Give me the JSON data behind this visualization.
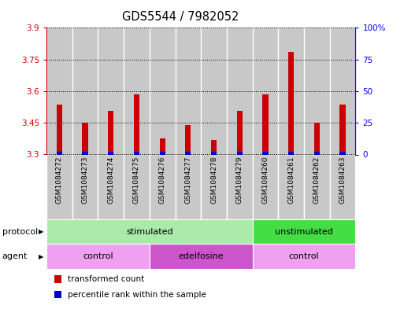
{
  "title": "GDS5544 / 7982052",
  "samples": [
    "GSM1084272",
    "GSM1084273",
    "GSM1084274",
    "GSM1084275",
    "GSM1084276",
    "GSM1084277",
    "GSM1084278",
    "GSM1084279",
    "GSM1084260",
    "GSM1084261",
    "GSM1084262",
    "GSM1084263"
  ],
  "red_values": [
    3.535,
    3.45,
    3.505,
    3.585,
    3.375,
    3.44,
    3.37,
    3.505,
    3.585,
    3.785,
    3.45,
    3.535
  ],
  "blue_values": [
    0.02,
    0.02,
    0.02,
    0.02,
    0.02,
    0.02,
    0.02,
    0.02,
    0.02,
    0.02,
    0.02,
    0.02
  ],
  "y_min": 3.3,
  "y_max": 3.9,
  "y_ticks_left": [
    3.3,
    3.45,
    3.6,
    3.75,
    3.9
  ],
  "y_ticks_right": [
    0,
    25,
    50,
    75,
    100
  ],
  "y_ticks_right_labels": [
    "0",
    "25",
    "50",
    "75",
    "100%"
  ],
  "red_color": "#cc0000",
  "blue_color": "#0000cc",
  "bar_bg_color": "#c8c8c8",
  "cell_divider_color": "#ffffff",
  "protocol_stimulated_color": "#aaeaaa",
  "protocol_unstimulated_color": "#44dd44",
  "agent_control_color": "#f0a0f0",
  "agent_edelfosine_color": "#cc55cc",
  "protocol_label": "protocol",
  "agent_label": "agent",
  "protocol_groups": [
    {
      "label": "stimulated",
      "start": 0,
      "end": 8
    },
    {
      "label": "unstimulated",
      "start": 8,
      "end": 12
    }
  ],
  "agent_groups": [
    {
      "label": "control",
      "start": 0,
      "end": 4
    },
    {
      "label": "edelfosine",
      "start": 4,
      "end": 8
    },
    {
      "label": "control",
      "start": 8,
      "end": 12
    }
  ],
  "legend_red": "transformed count",
  "legend_blue": "percentile rank within the sample",
  "title_fontsize": 10.5,
  "tick_fontsize": 7.5,
  "sample_fontsize": 6.5,
  "row_fontsize": 8,
  "legend_fontsize": 7.5
}
